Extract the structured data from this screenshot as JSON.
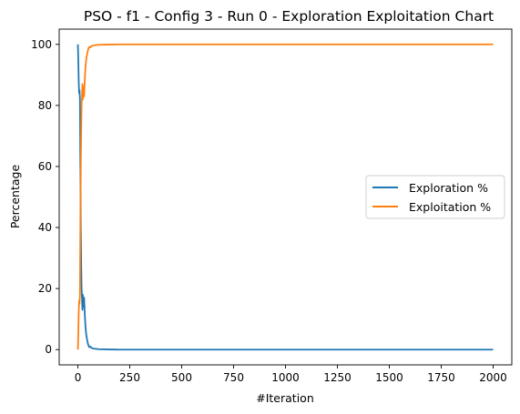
{
  "chart_data": {
    "type": "line",
    "title": "PSO - f1 - Config 3 - Run 0 - Exploration Exploitation Chart",
    "xlabel": "#Iteration",
    "ylabel": "Percentage",
    "xlim": [
      -90,
      2090
    ],
    "ylim": [
      -5,
      105
    ],
    "xticks": [
      0,
      250,
      500,
      750,
      1000,
      1250,
      1500,
      1750,
      2000
    ],
    "yticks": [
      0,
      20,
      40,
      60,
      80,
      100
    ],
    "grid": false,
    "legend_position": "center-right",
    "series": [
      {
        "name": "Exploration %",
        "color": "#1f77b4",
        "points": [
          [
            0,
            100
          ],
          [
            2,
            95
          ],
          [
            4,
            88
          ],
          [
            6,
            84
          ],
          [
            8,
            85
          ],
          [
            10,
            82
          ],
          [
            12,
            60
          ],
          [
            14,
            40
          ],
          [
            16,
            28
          ],
          [
            18,
            20
          ],
          [
            20,
            17
          ],
          [
            22,
            13
          ],
          [
            24,
            18
          ],
          [
            26,
            14
          ],
          [
            28,
            16
          ],
          [
            30,
            17
          ],
          [
            33,
            12
          ],
          [
            36,
            8
          ],
          [
            40,
            5
          ],
          [
            45,
            3
          ],
          [
            50,
            1.5
          ],
          [
            55,
            0.8
          ],
          [
            60,
            1
          ],
          [
            65,
            0.6
          ],
          [
            70,
            0.4
          ],
          [
            80,
            0.3
          ],
          [
            100,
            0.15
          ],
          [
            150,
            0.05
          ],
          [
            200,
            0
          ],
          [
            500,
            0
          ],
          [
            1000,
            0
          ],
          [
            1500,
            0
          ],
          [
            2000,
            0
          ]
        ]
      },
      {
        "name": "Exploitation %",
        "color": "#ff7f0e",
        "points": [
          [
            0,
            0
          ],
          [
            2,
            5
          ],
          [
            4,
            12
          ],
          [
            6,
            16
          ],
          [
            8,
            15
          ],
          [
            10,
            18
          ],
          [
            12,
            40
          ],
          [
            14,
            60
          ],
          [
            16,
            72
          ],
          [
            18,
            80
          ],
          [
            20,
            83
          ],
          [
            22,
            87
          ],
          [
            24,
            82
          ],
          [
            26,
            86
          ],
          [
            28,
            84
          ],
          [
            30,
            83
          ],
          [
            33,
            88
          ],
          [
            36,
            92
          ],
          [
            40,
            95
          ],
          [
            45,
            97
          ],
          [
            50,
            98.5
          ],
          [
            55,
            99.2
          ],
          [
            60,
            99
          ],
          [
            65,
            99.4
          ],
          [
            70,
            99.6
          ],
          [
            80,
            99.7
          ],
          [
            100,
            99.85
          ],
          [
            150,
            99.95
          ],
          [
            200,
            100
          ],
          [
            500,
            100
          ],
          [
            1000,
            100
          ],
          [
            1500,
            100
          ],
          [
            2000,
            100
          ]
        ]
      }
    ]
  }
}
